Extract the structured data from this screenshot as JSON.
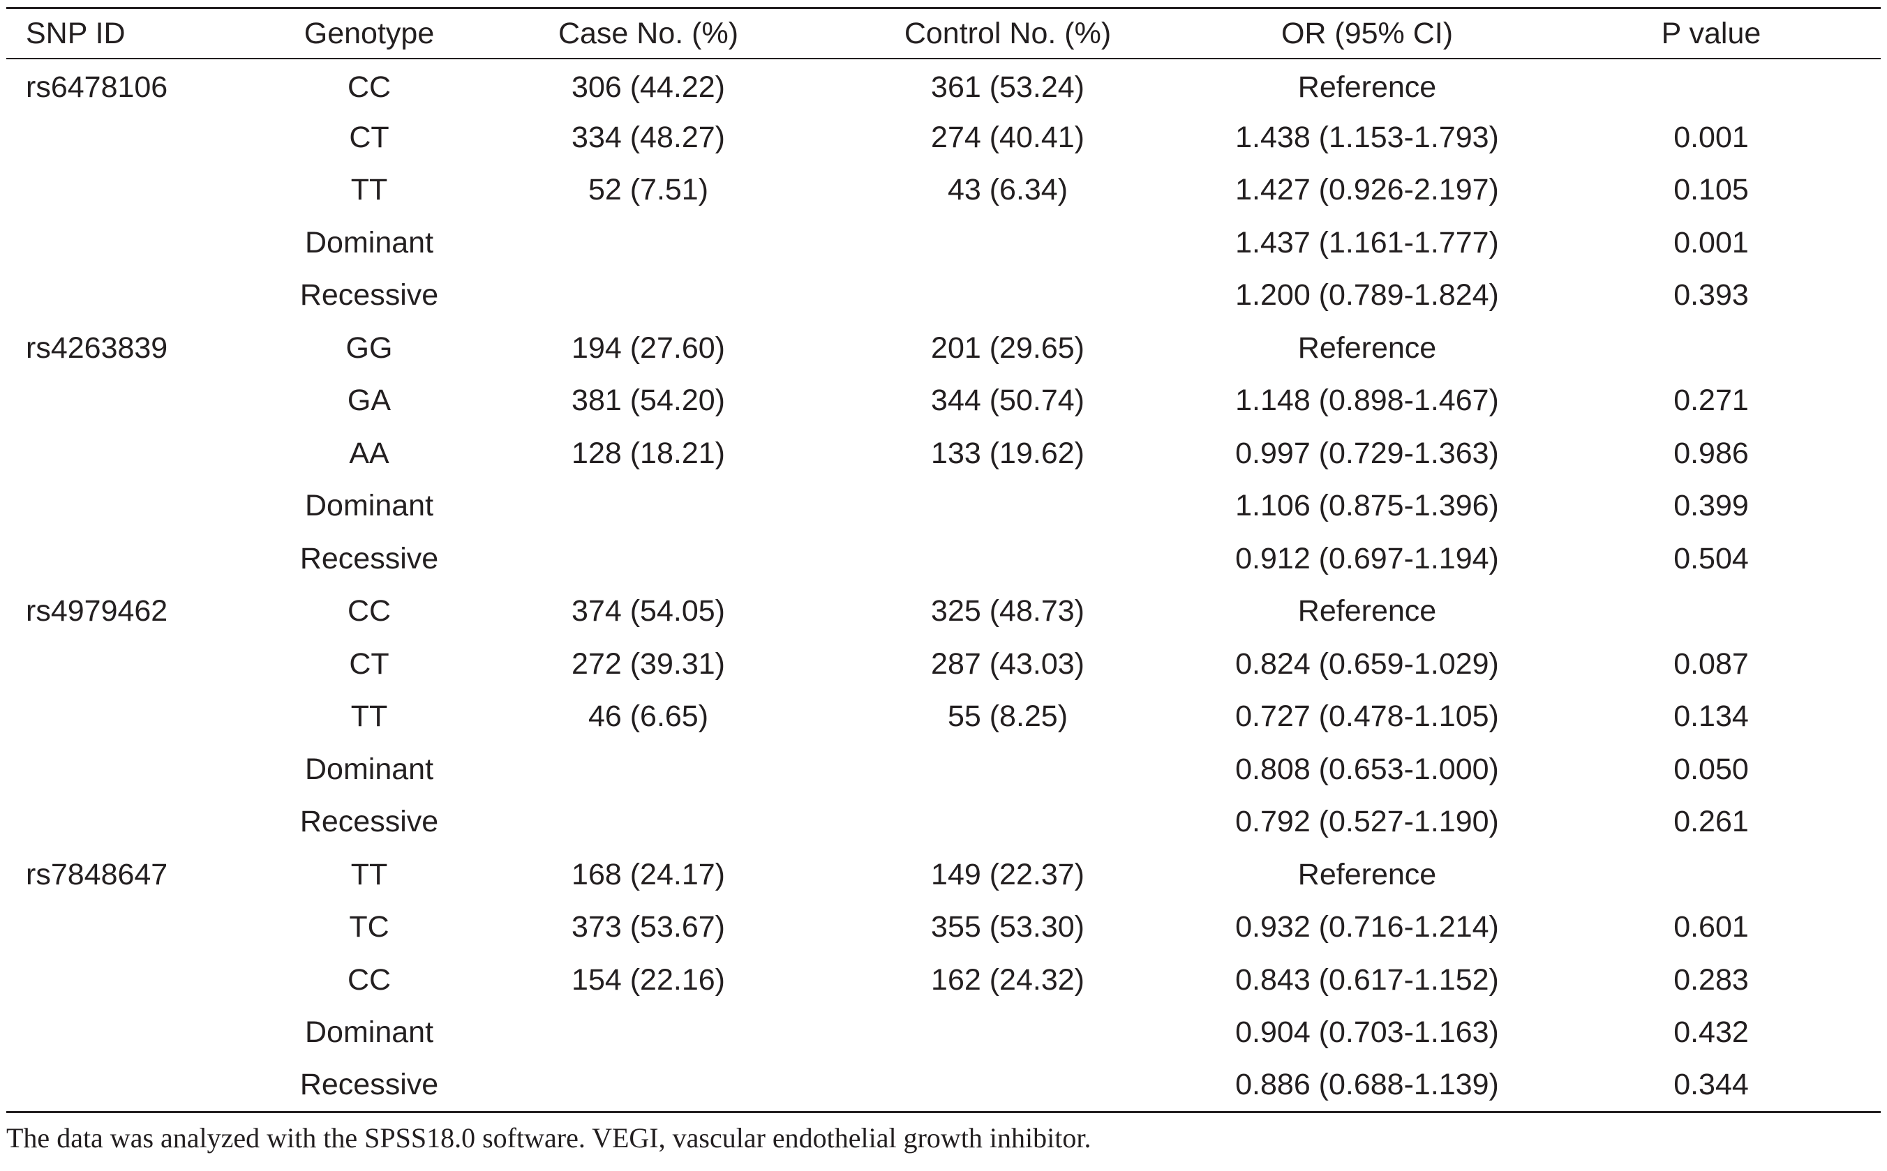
{
  "table": {
    "headers": {
      "snp_id": "SNP ID",
      "genotype": "Genotype",
      "case": "Case No. (%)",
      "control": "Control No. (%)",
      "or": "OR (95% CI)",
      "p_value": "P value"
    },
    "rows": [
      {
        "snp": "rs6478106",
        "genotype": "CC",
        "case": "306 (44.22)",
        "control": "361 (53.24)",
        "or": "Reference",
        "p": ""
      },
      {
        "snp": "",
        "genotype": "CT",
        "case": "334 (48.27)",
        "control": "274 (40.41)",
        "or": "1.438 (1.153-1.793)",
        "p": "0.001"
      },
      {
        "snp": "",
        "genotype": "TT",
        "case": "52 (7.51)",
        "control": "43 (6.34)",
        "or": "1.427 (0.926-2.197)",
        "p": "0.105"
      },
      {
        "snp": "",
        "genotype": "Dominant",
        "case": "",
        "control": "",
        "or": "1.437 (1.161-1.777)",
        "p": "0.001"
      },
      {
        "snp": "",
        "genotype": "Recessive",
        "case": "",
        "control": "",
        "or": "1.200 (0.789-1.824)",
        "p": "0.393"
      },
      {
        "snp": "rs4263839",
        "genotype": "GG",
        "case": "194 (27.60)",
        "control": "201 (29.65)",
        "or": "Reference",
        "p": ""
      },
      {
        "snp": "",
        "genotype": "GA",
        "case": "381 (54.20)",
        "control": "344 (50.74)",
        "or": "1.148 (0.898-1.467)",
        "p": "0.271"
      },
      {
        "snp": "",
        "genotype": "AA",
        "case": "128 (18.21)",
        "control": "133 (19.62)",
        "or": "0.997 (0.729-1.363)",
        "p": "0.986"
      },
      {
        "snp": "",
        "genotype": "Dominant",
        "case": "",
        "control": "",
        "or": "1.106 (0.875-1.396)",
        "p": "0.399"
      },
      {
        "snp": "",
        "genotype": "Recessive",
        "case": "",
        "control": "",
        "or": "0.912 (0.697-1.194)",
        "p": "0.504"
      },
      {
        "snp": "rs4979462",
        "genotype": "CC",
        "case": "374 (54.05)",
        "control": "325 (48.73)",
        "or": "Reference",
        "p": ""
      },
      {
        "snp": "",
        "genotype": "CT",
        "case": "272 (39.31)",
        "control": "287 (43.03)",
        "or": "0.824 (0.659-1.029)",
        "p": "0.087"
      },
      {
        "snp": "",
        "genotype": "TT",
        "case": "46 (6.65)",
        "control": "55 (8.25)",
        "or": "0.727 (0.478-1.105)",
        "p": "0.134"
      },
      {
        "snp": "",
        "genotype": "Dominant",
        "case": "",
        "control": "",
        "or": "0.808 (0.653-1.000)",
        "p": "0.050"
      },
      {
        "snp": "",
        "genotype": "Recessive",
        "case": "",
        "control": "",
        "or": "0.792 (0.527-1.190)",
        "p": "0.261"
      },
      {
        "snp": "rs7848647",
        "genotype": "TT",
        "case": "168 (24.17)",
        "control": "149 (22.37)",
        "or": "Reference",
        "p": ""
      },
      {
        "snp": "",
        "genotype": "TC",
        "case": "373 (53.67)",
        "control": "355 (53.30)",
        "or": "0.932 (0.716-1.214)",
        "p": "0.601"
      },
      {
        "snp": "",
        "genotype": "CC",
        "case": "154 (22.16)",
        "control": "162 (24.32)",
        "or": "0.843 (0.617-1.152)",
        "p": "0.283"
      },
      {
        "snp": "",
        "genotype": "Dominant",
        "case": "",
        "control": "",
        "or": "0.904 (0.703-1.163)",
        "p": "0.432"
      },
      {
        "snp": "",
        "genotype": "Recessive",
        "case": "",
        "control": "",
        "or": "0.886 (0.688-1.139)",
        "p": "0.344"
      }
    ]
  },
  "footnote": "The data was analyzed with the SPSS18.0 software. VEGI, vascular endothelial growth inhibitor."
}
